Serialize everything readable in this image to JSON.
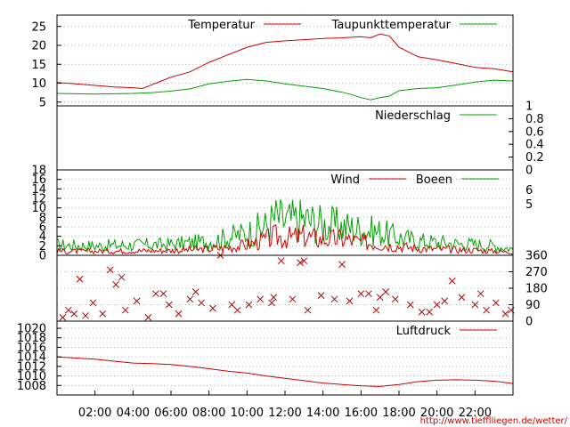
{
  "credit": "http://www.tiefflliegen.de/wetter/",
  "x_ticks": [
    "02:00",
    "04:00",
    "06:00",
    "08:00",
    "10:00",
    "12:00",
    "14:00",
    "16:00",
    "18:00",
    "20:00",
    "22:00"
  ],
  "colors": {
    "red": "#cc0000",
    "green": "#00a000",
    "grid": "#9a9a9a",
    "wind_dir": "#b00000"
  },
  "chart_data": [
    {
      "type": "line",
      "x_unit": "hours",
      "ylim": [
        4,
        28
      ],
      "yticks": [
        5,
        10,
        15,
        20,
        25
      ],
      "grid": true,
      "legend_placement": "top",
      "series": [
        {
          "name": "Temperatur",
          "color": "#cc0000",
          "x": [
            0,
            1,
            2,
            3,
            4,
            4.5,
            5,
            5.5,
            6,
            7,
            8,
            9,
            10,
            11,
            12,
            13,
            14,
            15,
            16,
            16.5,
            17,
            17.5,
            18,
            19,
            20,
            21,
            22,
            23,
            24
          ],
          "y": [
            10.2,
            9.8,
            9.4,
            9.0,
            8.8,
            8.6,
            9.6,
            10.6,
            11.6,
            13.0,
            15.5,
            17.5,
            19.5,
            20.8,
            21.2,
            21.5,
            21.8,
            22.0,
            22.3,
            22.0,
            23.0,
            22.5,
            19.5,
            17.0,
            16.2,
            15.2,
            14.2,
            13.8,
            13.0
          ]
        },
        {
          "name": "Taupunkttemperatur",
          "color": "#00a000",
          "x": [
            0,
            1,
            2,
            3,
            4,
            5,
            6,
            7,
            8,
            9,
            10,
            11,
            12,
            13,
            14,
            15,
            15.5,
            16,
            16.5,
            17,
            17.5,
            18,
            19,
            20,
            21,
            22,
            23,
            24
          ],
          "y": [
            7.3,
            7.2,
            7.1,
            7.2,
            7.3,
            7.5,
            7.9,
            8.5,
            9.8,
            10.5,
            11.0,
            10.6,
            9.8,
            9.2,
            8.6,
            7.6,
            7.0,
            6.2,
            5.6,
            6.2,
            6.6,
            8.0,
            8.6,
            8.8,
            9.5,
            10.3,
            10.8,
            10.6
          ]
        }
      ]
    },
    {
      "type": "line",
      "x_unit": "hours",
      "ylim": [
        0,
        1
      ],
      "yticks": [
        "0",
        "0.2",
        "0.4",
        "0.6",
        "0.8",
        "1"
      ],
      "grid": false,
      "legend_placement": "top-right",
      "series": [
        {
          "name": "Niederschlag",
          "color": "#00a000",
          "x": [
            0,
            24
          ],
          "y": [
            0,
            0
          ]
        }
      ]
    },
    {
      "type": "line",
      "x_unit": "hours",
      "ylim": [
        0,
        18
      ],
      "yticks": [
        0,
        2,
        4,
        6,
        8,
        10,
        12,
        14,
        16,
        18
      ],
      "right_axis_labels": [
        {
          "label": "6",
          "value": 13.8
        },
        {
          "label": "5",
          "value": 10.8
        }
      ],
      "grid": true,
      "legend_placement": "top-right",
      "series": [
        {
          "name": "Wind",
          "color": "#cc0000",
          "envelope_x": [
            0,
            2,
            4,
            6,
            8,
            9,
            10,
            11,
            11.5,
            12,
            13,
            14,
            15,
            16,
            17,
            18,
            19,
            20,
            21,
            22,
            23,
            24
          ],
          "envelope_y": [
            1.2,
            1.2,
            1.3,
            1.4,
            1.8,
            2.2,
            3.0,
            4.5,
            5.5,
            5.0,
            5.5,
            4.5,
            4.8,
            3.8,
            3.2,
            2.6,
            2.0,
            1.8,
            1.6,
            1.5,
            1.2,
            0.8
          ]
        },
        {
          "name": "Boeen",
          "color": "#00a000",
          "envelope_x": [
            0,
            2,
            4,
            6,
            8,
            9,
            10,
            11,
            11.5,
            12,
            13,
            14,
            15,
            16,
            17,
            18,
            19,
            20,
            21,
            22,
            23,
            24
          ],
          "envelope_y": [
            3.0,
            2.8,
            3.0,
            3.2,
            4.0,
            5.2,
            6.5,
            8.5,
            11.0,
            10.0,
            10.5,
            9.0,
            8.5,
            7.5,
            6.8,
            5.2,
            4.2,
            3.8,
            3.4,
            3.2,
            2.8,
            1.8
          ]
        }
      ]
    },
    {
      "type": "scatter",
      "x_unit": "hours",
      "ylim": [
        0,
        360
      ],
      "yticks": [
        0,
        90,
        180,
        270,
        360
      ],
      "grid": true,
      "marker": "x",
      "series": [
        {
          "name": "",
          "color": "#b00000",
          "x": [
            0.3,
            0.6,
            1.2,
            1.5,
            1.9,
            2.4,
            3.1,
            3.6,
            4.2,
            4.8,
            5.2,
            5.9,
            6.4,
            7.0,
            7.6,
            8.2,
            8.6,
            9.5,
            10.1,
            10.7,
            11.3,
            11.8,
            12.4,
            13.2,
            13.9,
            14.6,
            15.4,
            16.0,
            16.8,
            17.3,
            17.8,
            18.6,
            19.2,
            20.0,
            20.8,
            21.3,
            22.0,
            22.6,
            23.1,
            23.6,
            0.9,
            2.8,
            5.6,
            9.2,
            11.4,
            13.0,
            15.0,
            17.0,
            19.6,
            22.3,
            3.4,
            7.3,
            12.8,
            16.4,
            20.4,
            23.9
          ],
          "y": [
            20,
            60,
            230,
            30,
            100,
            40,
            200,
            60,
            110,
            20,
            150,
            90,
            40,
            120,
            100,
            70,
            360,
            60,
            90,
            120,
            100,
            330,
            120,
            60,
            140,
            120,
            110,
            150,
            60,
            160,
            120,
            90,
            50,
            90,
            220,
            130,
            90,
            60,
            100,
            40,
            40,
            280,
            150,
            90,
            130,
            330,
            310,
            130,
            50,
            150,
            240,
            160,
            320,
            150,
            110,
            60
          ]
        }
      ]
    },
    {
      "type": "line",
      "x_unit": "hours",
      "ylim": [
        1006,
        1021.5
      ],
      "yticks": [
        1008,
        1010,
        1012,
        1014,
        1016,
        1018,
        1020
      ],
      "grid": true,
      "legend_placement": "top-right",
      "series": [
        {
          "name": "Luftdruck",
          "color": "#cc0000",
          "x": [
            0,
            2,
            3,
            4,
            5,
            6,
            7,
            8,
            9,
            10,
            11,
            12,
            13,
            14,
            15,
            16,
            17,
            17.5,
            18,
            19,
            20,
            21,
            22,
            23,
            24
          ],
          "y": [
            1014.0,
            1013.5,
            1013.1,
            1012.7,
            1012.6,
            1012.4,
            1012.0,
            1011.5,
            1011.0,
            1010.6,
            1010.0,
            1009.5,
            1009.0,
            1008.5,
            1008.2,
            1007.9,
            1007.8,
            1008.0,
            1008.2,
            1008.8,
            1009.1,
            1009.2,
            1009.1,
            1008.9,
            1008.4
          ]
        }
      ]
    }
  ]
}
